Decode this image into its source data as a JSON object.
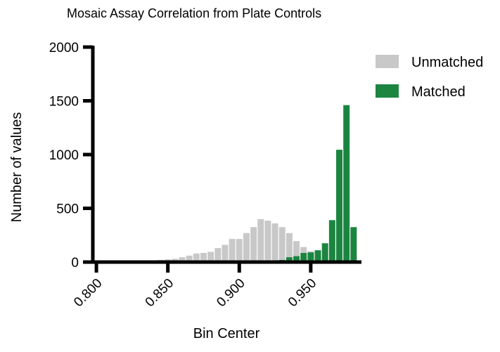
{
  "chart_data": {
    "type": "bar",
    "title": "Mosaic Assay Correlation from Plate Controls",
    "xlabel": "Bin Center",
    "ylabel": "Number of values",
    "xlim": [
      0.7975,
      0.9855
    ],
    "ylim": [
      0,
      2000
    ],
    "x_ticks": [
      "0.800",
      "0.850",
      "0.900",
      "0.950"
    ],
    "y_ticks": [
      "0",
      "500",
      "1000",
      "1500",
      "2000"
    ],
    "bin_width": 0.005,
    "legend_position": "top-right",
    "series": [
      {
        "name": "Unmatched",
        "color": "#c8c8c8",
        "bins": [
          {
            "x": 0.835,
            "y": 10
          },
          {
            "x": 0.84,
            "y": 15
          },
          {
            "x": 0.845,
            "y": 20
          },
          {
            "x": 0.85,
            "y": 25
          },
          {
            "x": 0.855,
            "y": 30
          },
          {
            "x": 0.86,
            "y": 45
          },
          {
            "x": 0.865,
            "y": 60
          },
          {
            "x": 0.87,
            "y": 80
          },
          {
            "x": 0.875,
            "y": 85
          },
          {
            "x": 0.88,
            "y": 95
          },
          {
            "x": 0.885,
            "y": 130
          },
          {
            "x": 0.89,
            "y": 160
          },
          {
            "x": 0.895,
            "y": 215
          },
          {
            "x": 0.9,
            "y": 215
          },
          {
            "x": 0.905,
            "y": 270
          },
          {
            "x": 0.91,
            "y": 325
          },
          {
            "x": 0.915,
            "y": 400
          },
          {
            "x": 0.92,
            "y": 385
          },
          {
            "x": 0.925,
            "y": 360
          },
          {
            "x": 0.93,
            "y": 325
          },
          {
            "x": 0.935,
            "y": 270
          },
          {
            "x": 0.94,
            "y": 195
          },
          {
            "x": 0.945,
            "y": 140
          },
          {
            "x": 0.95,
            "y": 100
          },
          {
            "x": 0.955,
            "y": 65
          },
          {
            "x": 0.96,
            "y": 45
          },
          {
            "x": 0.965,
            "y": 25
          }
        ]
      },
      {
        "name": "Matched",
        "color": "#1b8540",
        "bins": [
          {
            "x": 0.93,
            "y": 20
          },
          {
            "x": 0.935,
            "y": 45
          },
          {
            "x": 0.94,
            "y": 55
          },
          {
            "x": 0.945,
            "y": 85
          },
          {
            "x": 0.95,
            "y": 90
          },
          {
            "x": 0.955,
            "y": 110
          },
          {
            "x": 0.96,
            "y": 175
          },
          {
            "x": 0.965,
            "y": 390
          },
          {
            "x": 0.97,
            "y": 1045
          },
          {
            "x": 0.975,
            "y": 1460
          },
          {
            "x": 0.98,
            "y": 325
          }
        ]
      }
    ]
  }
}
